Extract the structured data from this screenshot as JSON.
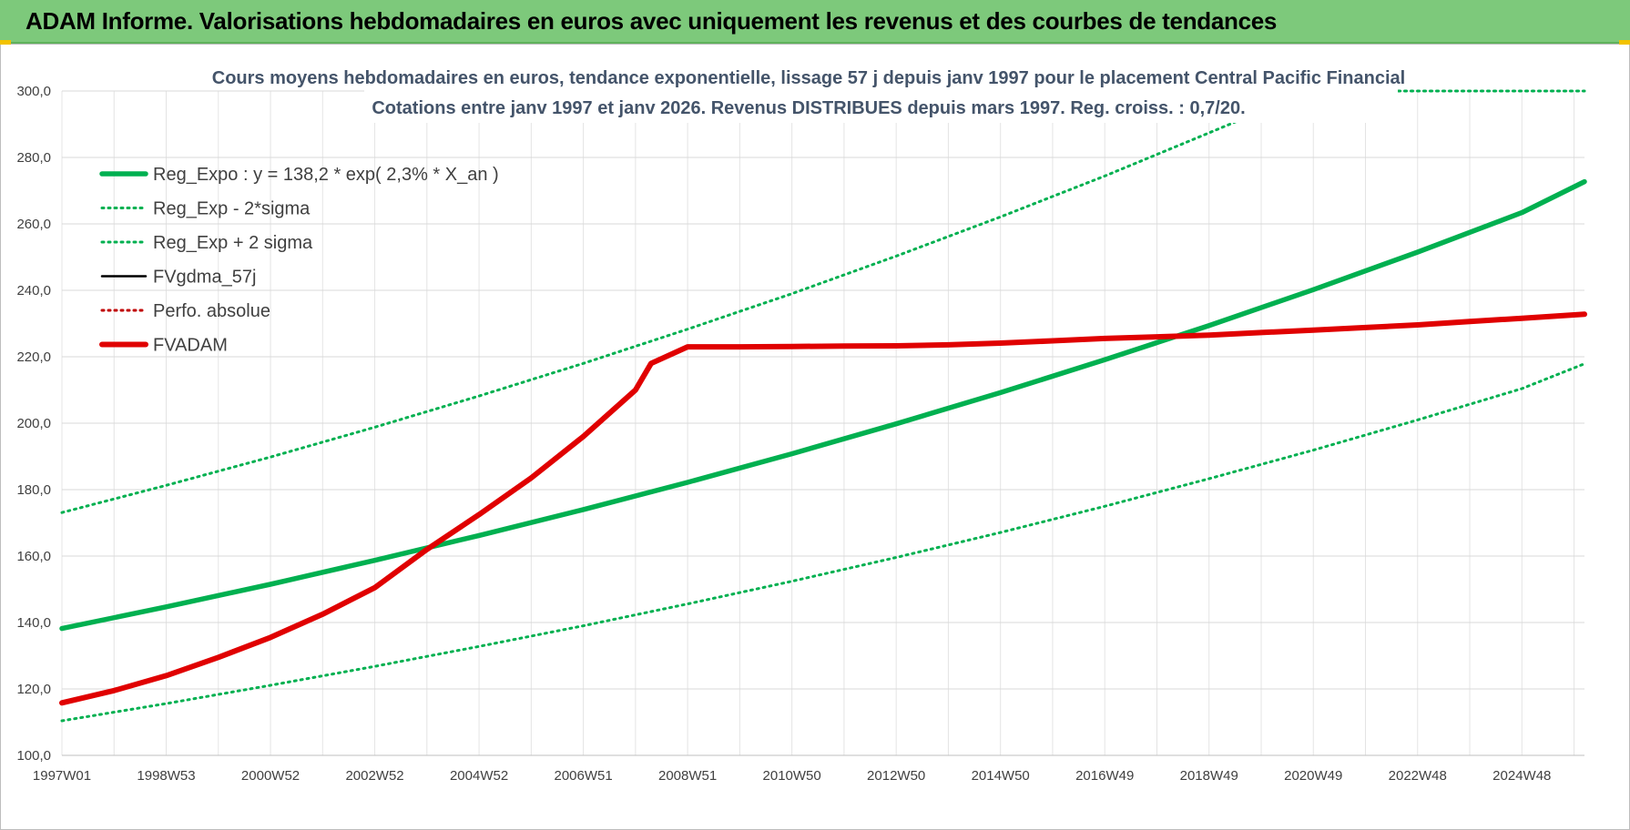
{
  "header": {
    "title": "ADAM Informe. Valorisations hebdomadaires en euros avec uniquement les revenus et des courbes de tendances"
  },
  "chart_data": {
    "type": "line",
    "title": "Cours moyens hebdomadaires en euros, tendance exponentielle, lissage 57 j depuis janv 1997 pour le placement Central Pacific Financial",
    "subtitle": "Cotations entre janv 1997 et janv 2026. Revenus DISTRIBUES depuis mars 1997.  Reg. croiss. : 0,7/20.",
    "xlabel": "",
    "ylabel": "",
    "ylim": [
      100,
      300
    ],
    "yticks": [
      "100,0",
      "120,0",
      "140,0",
      "160,0",
      "180,0",
      "200,0",
      "220,0",
      "240,0",
      "260,0",
      "280,0",
      "300,0"
    ],
    "x_range_years": [
      1997.0,
      2026.2
    ],
    "x_tick_labels": [
      "1997W01",
      "1998W53",
      "2000W52",
      "2002W52",
      "2004W52",
      "2006W51",
      "2008W51",
      "2010W50",
      "2012W50",
      "2014W50",
      "2016W49",
      "2018W49",
      "2020W49",
      "2022W48",
      "2024W48"
    ],
    "x_tick_years": [
      1997,
      1999,
      2001,
      2003,
      2005,
      2007,
      2009,
      2011,
      2013,
      2015,
      2017,
      2019,
      2021,
      2023,
      2025
    ],
    "grid": true,
    "legend_position": "top-left",
    "series": [
      {
        "name": "Reg_Expo : y = 138,2 * exp( 2,3% *  X_an )",
        "color": "#00b050",
        "style": "solid-thick",
        "x": [
          1997,
          1999,
          2001,
          2003,
          2005,
          2007,
          2009,
          2011,
          2013,
          2015,
          2017,
          2019,
          2021,
          2023,
          2025,
          2026.2
        ],
        "y": [
          138.2,
          144.7,
          151.5,
          158.7,
          166.2,
          174.0,
          182.2,
          190.8,
          199.8,
          209.2,
          219.1,
          229.4,
          240.2,
          251.5,
          263.4,
          272.7
        ]
      },
      {
        "name": "Reg_Exp - 2*sigma",
        "color": "#00b050",
        "style": "dotted",
        "x": [
          1997,
          1999,
          2001,
          2003,
          2005,
          2007,
          2009,
          2011,
          2013,
          2015,
          2017,
          2019,
          2021,
          2023,
          2025,
          2026.2
        ],
        "y": [
          110.4,
          115.6,
          121.1,
          126.8,
          132.8,
          139.0,
          145.6,
          152.4,
          159.6,
          167.1,
          175.0,
          183.3,
          191.9,
          201.0,
          210.4,
          217.9
        ]
      },
      {
        "name": "Reg_Exp + 2 sigma",
        "color": "#00b050",
        "style": "dotted",
        "x": [
          1997,
          1999,
          2001,
          2003,
          2005,
          2007,
          2009,
          2011,
          2013,
          2015,
          2017,
          2019,
          2020.1,
          2020.1,
          2026.2
        ],
        "y": [
          173.1,
          181.3,
          189.8,
          198.8,
          208.2,
          218.0,
          228.3,
          239.0,
          250.3,
          262.1,
          274.4,
          287.4,
          294.6,
          300.0,
          300.0
        ]
      },
      {
        "name": "FVgdma_57j",
        "color": "#000000",
        "style": "solid",
        "x": [],
        "y": []
      },
      {
        "name": "Perfo. absolue",
        "color": "#c00000",
        "style": "dotted",
        "x": [],
        "y": []
      },
      {
        "name": "FVADAM",
        "color": "#e00000",
        "style": "solid-thick",
        "x": [
          1997.0,
          1998.0,
          1999.0,
          2000.0,
          2001.0,
          2002.0,
          2003.0,
          2004.0,
          2005.0,
          2006.0,
          2007.0,
          2008.0,
          2008.3,
          2009.0,
          2010.0,
          2011.0,
          2012.0,
          2013.0,
          2014.0,
          2015.0,
          2016.0,
          2017.0,
          2018.0,
          2019.0,
          2020.0,
          2021.0,
          2022.0,
          2023.0,
          2024.0,
          2025.0,
          2026.2
        ],
        "y": [
          115.8,
          119.5,
          124.0,
          129.5,
          135.5,
          142.5,
          150.5,
          162.0,
          172.5,
          183.5,
          196.0,
          210.0,
          218.0,
          223.0,
          223.0,
          223.1,
          223.2,
          223.3,
          223.6,
          224.1,
          224.8,
          225.5,
          226.0,
          226.5,
          227.3,
          228.0,
          228.8,
          229.6,
          230.6,
          231.6,
          232.8
        ]
      }
    ]
  }
}
